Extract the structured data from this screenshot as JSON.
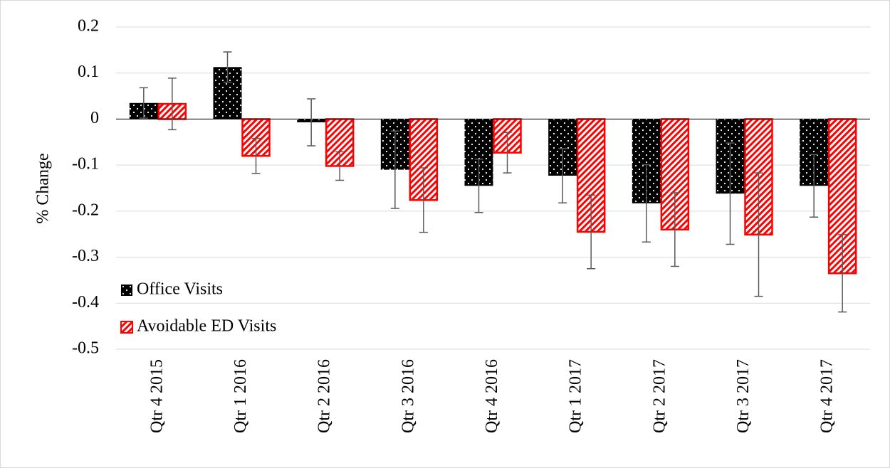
{
  "chart_data": {
    "type": "bar",
    "y_label": "% Change",
    "categories": [
      "Qtr 4 2015",
      "Qtr 1 2016",
      "Qtr 2 2016",
      "Qtr 3 2016",
      "Qtr 4 2016",
      "Qtr 1 2017",
      "Qtr 2 2017",
      "Qtr 3 2017",
      "Qtr 4 2017"
    ],
    "series": [
      {
        "name": "Office Visits",
        "color": "#000000",
        "values": [
          0.035,
          0.113,
          -0.007,
          -0.11,
          -0.145,
          -0.123,
          -0.183,
          -0.162,
          -0.145
        ],
        "errors": [
          0.033,
          0.033,
          0.051,
          0.084,
          0.058,
          0.059,
          0.084,
          0.11,
          0.068
        ]
      },
      {
        "name": "Avoidable ED Visits",
        "color": "#ff0000",
        "values": [
          0.033,
          -0.08,
          -0.102,
          -0.176,
          -0.073,
          -0.245,
          -0.24,
          -0.251,
          -0.335
        ],
        "errors": [
          0.056,
          0.038,
          0.031,
          0.07,
          0.044,
          0.08,
          0.08,
          0.134,
          0.084
        ]
      }
    ],
    "ylim": [
      -0.5,
      0.2
    ],
    "yticks": [
      0.2,
      0.1,
      0,
      -0.1,
      -0.2,
      -0.3,
      -0.4,
      -0.5
    ],
    "grid": true,
    "legend": "left"
  }
}
